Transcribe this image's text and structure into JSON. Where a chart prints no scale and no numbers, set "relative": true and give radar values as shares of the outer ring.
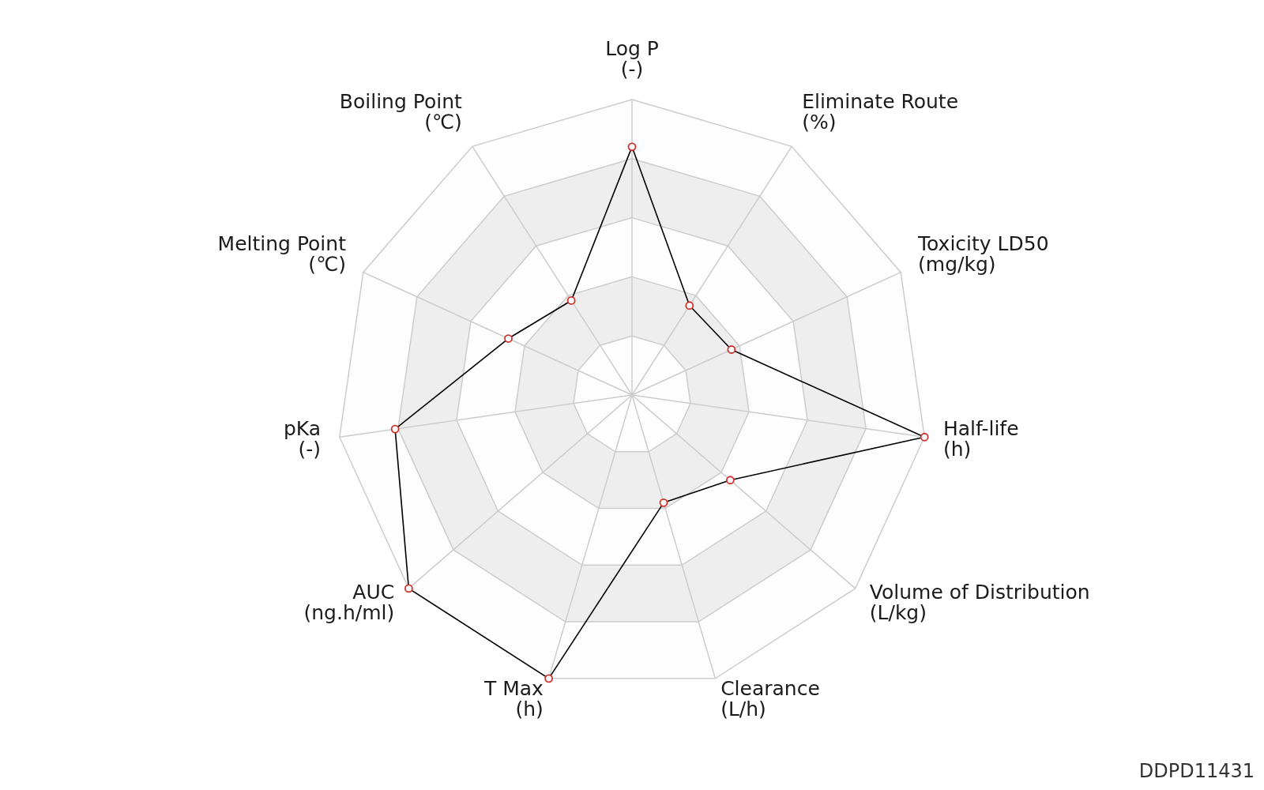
{
  "chart_data": {
    "type": "radar",
    "relative": true,
    "categories": [
      "Log P\n(-)",
      "Eliminate Route\n(%)",
      "Toxicity LD50\n(mg/kg)",
      "Half-life\n(h)",
      "Volume of Distribution\n(L/kg)",
      "Clearance\n(L/h)",
      "T Max\n(h)",
      "AUC\n(ng.h/ml)",
      "pKa\n(-)",
      "Melting Point\n(℃)",
      "Boiling Point\n(℃)"
    ],
    "series": [
      {
        "color": "#000000",
        "values": [
          0.84,
          0.36,
          0.37,
          1,
          0.44,
          0.38,
          1,
          1,
          0.81,
          0.46,
          0.38
        ]
      }
    ],
    "marker": "circle",
    "grid": true,
    "annotations": [
      "DDPD11431"
    ]
  }
}
